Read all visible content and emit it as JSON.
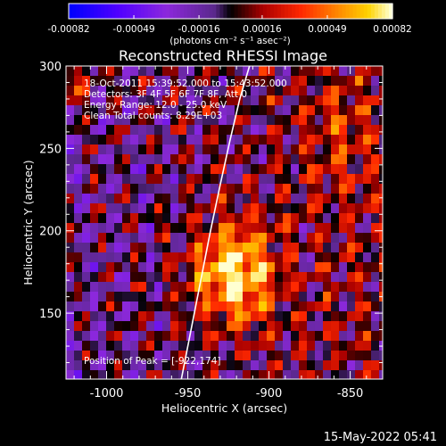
{
  "chart_data": {
    "type": "heatmap",
    "title": "Reconstructed RHESSI Image",
    "xlabel": "Heliocentric X (arcsec)",
    "ylabel": "Heliocentric Y (arcsec)",
    "xlim": [
      -1025,
      -830
    ],
    "ylim": [
      110,
      300
    ],
    "x_ticks": [
      "-1000",
      "-950",
      "-900",
      "-850"
    ],
    "x_tick_values": [
      -1000,
      -950,
      -900,
      -850
    ],
    "y_ticks": [
      "300",
      "250",
      "200",
      "150"
    ],
    "y_tick_values": [
      300,
      250,
      200,
      150
    ],
    "colorbar": {
      "ticks": [
        "-0.00082",
        "-0.00049",
        "-0.00016",
        "0.00016",
        "0.00049",
        "0.00082"
      ],
      "tick_values": [
        -0.00082,
        -0.00049,
        -0.00016,
        0.00016,
        0.00049,
        0.00082
      ],
      "range": [
        -0.00082,
        0.00082
      ],
      "unit_label": "(photons cm⁻² s⁻¹ asec⁻²)"
    },
    "annotations": [
      "18-Oct-2011 15:39:52.000 to 15:43:52.000",
      "Detectors: 3F 4F 5F 6F 7F 8F, Att 0",
      "Energy Range: 12.0 - 25.0 keV",
      "Clean     Total counts: 8.29E+03"
    ],
    "peak_label": "Position of Peak = [-922,174]",
    "peak_position": [
      -922,
      174
    ],
    "limb_curve": {
      "x": [
        -954,
        -948,
        -942,
        -936,
        -930,
        -924,
        -918,
        -912
      ],
      "y": [
        110,
        140,
        170,
        200,
        228,
        255,
        280,
        300
      ]
    },
    "grid": false,
    "legend": "none"
  },
  "timestamp": "15-May-2022 05:41",
  "colors": {
    "background": "#000000",
    "foreground": "#ffffff",
    "colormap": [
      "#0000ff",
      "#4400ff",
      "#8a2be2",
      "#7a3aa0",
      "#000000",
      "#b00000",
      "#ff3000",
      "#ff8c00",
      "#ffd000",
      "#ffffaa"
    ]
  }
}
